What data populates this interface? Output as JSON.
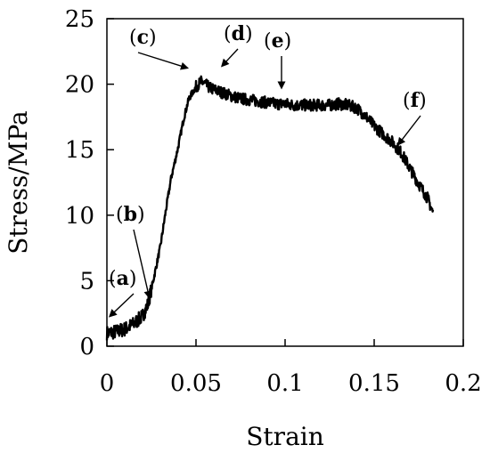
{
  "chart_data": {
    "type": "line",
    "title": "",
    "xlabel": "Strain",
    "ylabel": "Stress/MPa",
    "xlim": [
      0,
      0.2
    ],
    "ylim": [
      0,
      25
    ],
    "x_ticks": [
      0,
      0.05,
      0.1,
      0.15,
      0.2
    ],
    "x_tick_labels": [
      "0",
      "0.05",
      "0.1",
      "0.15",
      "0.2"
    ],
    "y_ticks": [
      0,
      5,
      10,
      15,
      20,
      25
    ],
    "y_tick_labels": [
      "0",
      "5",
      "10",
      "15",
      "20",
      "25"
    ],
    "grid": false,
    "legend": "none",
    "series": [
      {
        "color": "#000000",
        "x": [
          0,
          0.005,
          0.01,
          0.015,
          0.02,
          0.023,
          0.026,
          0.03,
          0.033,
          0.036,
          0.04,
          0.043,
          0.046,
          0.05,
          0.053,
          0.055,
          0.058,
          0.062,
          0.066,
          0.07,
          0.075,
          0.08,
          0.085,
          0.09,
          0.095,
          0.1,
          0.105,
          0.11,
          0.115,
          0.12,
          0.125,
          0.13,
          0.135,
          0.14,
          0.145,
          0.15,
          0.155,
          0.16,
          0.165,
          0.17,
          0.175,
          0.18,
          0.183
        ],
        "y": [
          1.0,
          1.1,
          1.3,
          1.7,
          2.3,
          3.2,
          5.0,
          7.6,
          10.3,
          12.8,
          15.2,
          17.3,
          18.9,
          19.8,
          20.2,
          20.0,
          19.7,
          19.5,
          19.3,
          19.1,
          18.9,
          18.8,
          18.7,
          18.6,
          18.5,
          18.5,
          18.4,
          18.4,
          18.4,
          18.4,
          18.4,
          18.5,
          18.4,
          18.2,
          17.6,
          16.8,
          16.2,
          15.6,
          14.8,
          13.6,
          12.4,
          11.3,
          10.2
        ]
      }
    ],
    "annotations": [
      {
        "label": "(a)",
        "x": 0.001,
        "y": 2.2
      },
      {
        "label": "(b)",
        "x": 0.024,
        "y": 3.6
      },
      {
        "label": "(c)",
        "x": 0.046,
        "y": 21.2
      },
      {
        "label": "(d)",
        "x": 0.064,
        "y": 21.3
      },
      {
        "label": "(e)",
        "x": 0.098,
        "y": 19.6
      },
      {
        "label": "(f)",
        "x": 0.163,
        "y": 15.3
      }
    ]
  }
}
